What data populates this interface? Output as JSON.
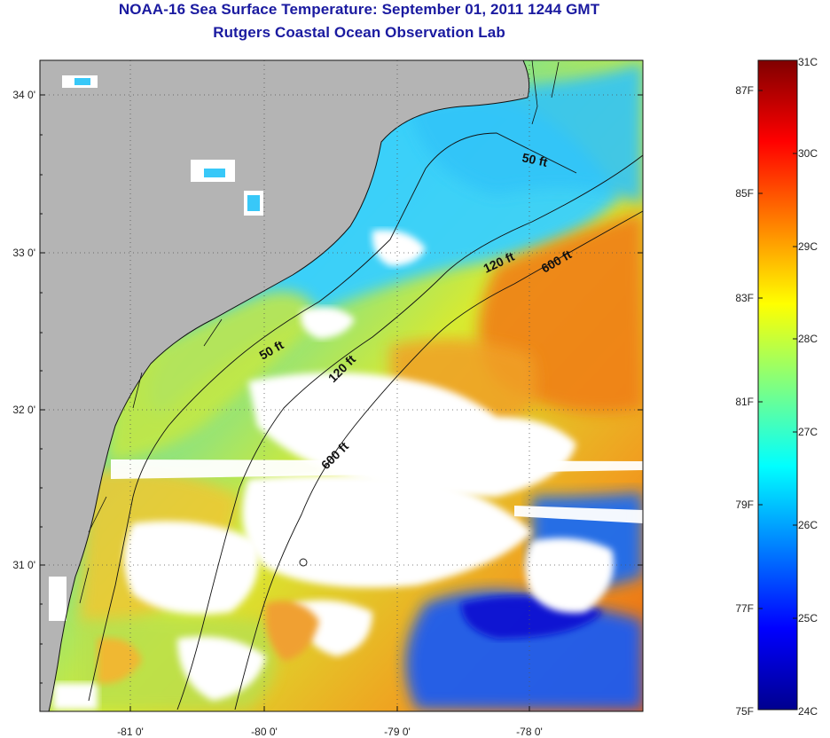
{
  "header": {
    "title": "NOAA-16 Sea Surface Temperature:  September 01, 2011 1244 GMT",
    "subtitle": "Rutgers Coastal Ocean Observation Lab"
  },
  "map": {
    "lat_ticks": [
      "34 0'",
      "33 0'",
      "32 0'",
      "31 0'"
    ],
    "lon_ticks": [
      "-81 0'",
      "-80 0'",
      "-79 0'",
      "-78 0'"
    ],
    "isobaths": [
      "50 ft",
      "120 ft",
      "600 ft",
      "50 ft",
      "120 ft",
      "600 ft"
    ],
    "land_color": "#b4b4b4",
    "cloud_color": "#ffffff"
  },
  "colorbar": {
    "fahrenheit": [
      "87F",
      "85F",
      "83F",
      "81F",
      "79F",
      "77F",
      "75F"
    ],
    "celsius": [
      "31C",
      "30C",
      "29C",
      "28C",
      "27C",
      "26C",
      "25C",
      "24C"
    ],
    "range_c": [
      24,
      31
    ]
  }
}
